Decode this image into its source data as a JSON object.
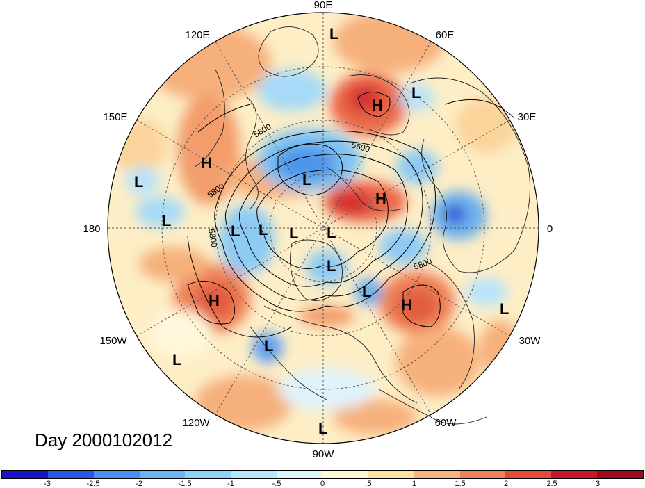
{
  "title": "Day 2000102012",
  "lon_labels": {
    "e90": "90E",
    "e120": "120E",
    "e60": "60E",
    "e150": "150E",
    "e30": "30E",
    "w180": "180",
    "zero": "0",
    "w150": "150W",
    "w30": "30W",
    "w120": "120W",
    "w60": "60W",
    "w90": "90W"
  },
  "contour_labels": [
    "5800",
    "5800",
    "5600",
    "5800",
    "5800"
  ],
  "pressure_centers": [
    {
      "type": "L",
      "label": "L"
    },
    {
      "type": "L",
      "label": "L"
    },
    {
      "type": "H",
      "label": "H"
    },
    {
      "type": "H",
      "label": "H"
    },
    {
      "type": "L",
      "label": "L"
    },
    {
      "type": "L",
      "label": "L"
    },
    {
      "type": "H",
      "label": "H"
    },
    {
      "type": "L",
      "label": "L"
    },
    {
      "type": "L",
      "label": "L"
    },
    {
      "type": "L",
      "label": "L"
    },
    {
      "type": "L",
      "label": "L"
    },
    {
      "type": "L",
      "label": "L"
    },
    {
      "type": "L",
      "label": "L"
    },
    {
      "type": "L",
      "label": "L"
    },
    {
      "type": "H",
      "label": "H"
    },
    {
      "type": "H",
      "label": "H"
    },
    {
      "type": "L",
      "label": "L"
    },
    {
      "type": "L",
      "label": "L"
    },
    {
      "type": "L",
      "label": "L"
    },
    {
      "type": "L",
      "label": "L"
    }
  ],
  "colorbar": {
    "colors": [
      "#1a12c9",
      "#2c55e6",
      "#4a8ff0",
      "#6ab6f5",
      "#8ed2f8",
      "#b5e8fb",
      "#dcf4fc",
      "#fff8d6",
      "#fde3a2",
      "#f9b27a",
      "#f0825a",
      "#e44a3c",
      "#c9172a",
      "#9e0820"
    ],
    "tick_labels": [
      "-3",
      "-2.5",
      "-2",
      "-1.5",
      "-1",
      "-.5",
      "0",
      ".5",
      "1",
      "1.5",
      "2",
      "2.5",
      "3"
    ]
  },
  "projection": "north-polar-stereographic"
}
